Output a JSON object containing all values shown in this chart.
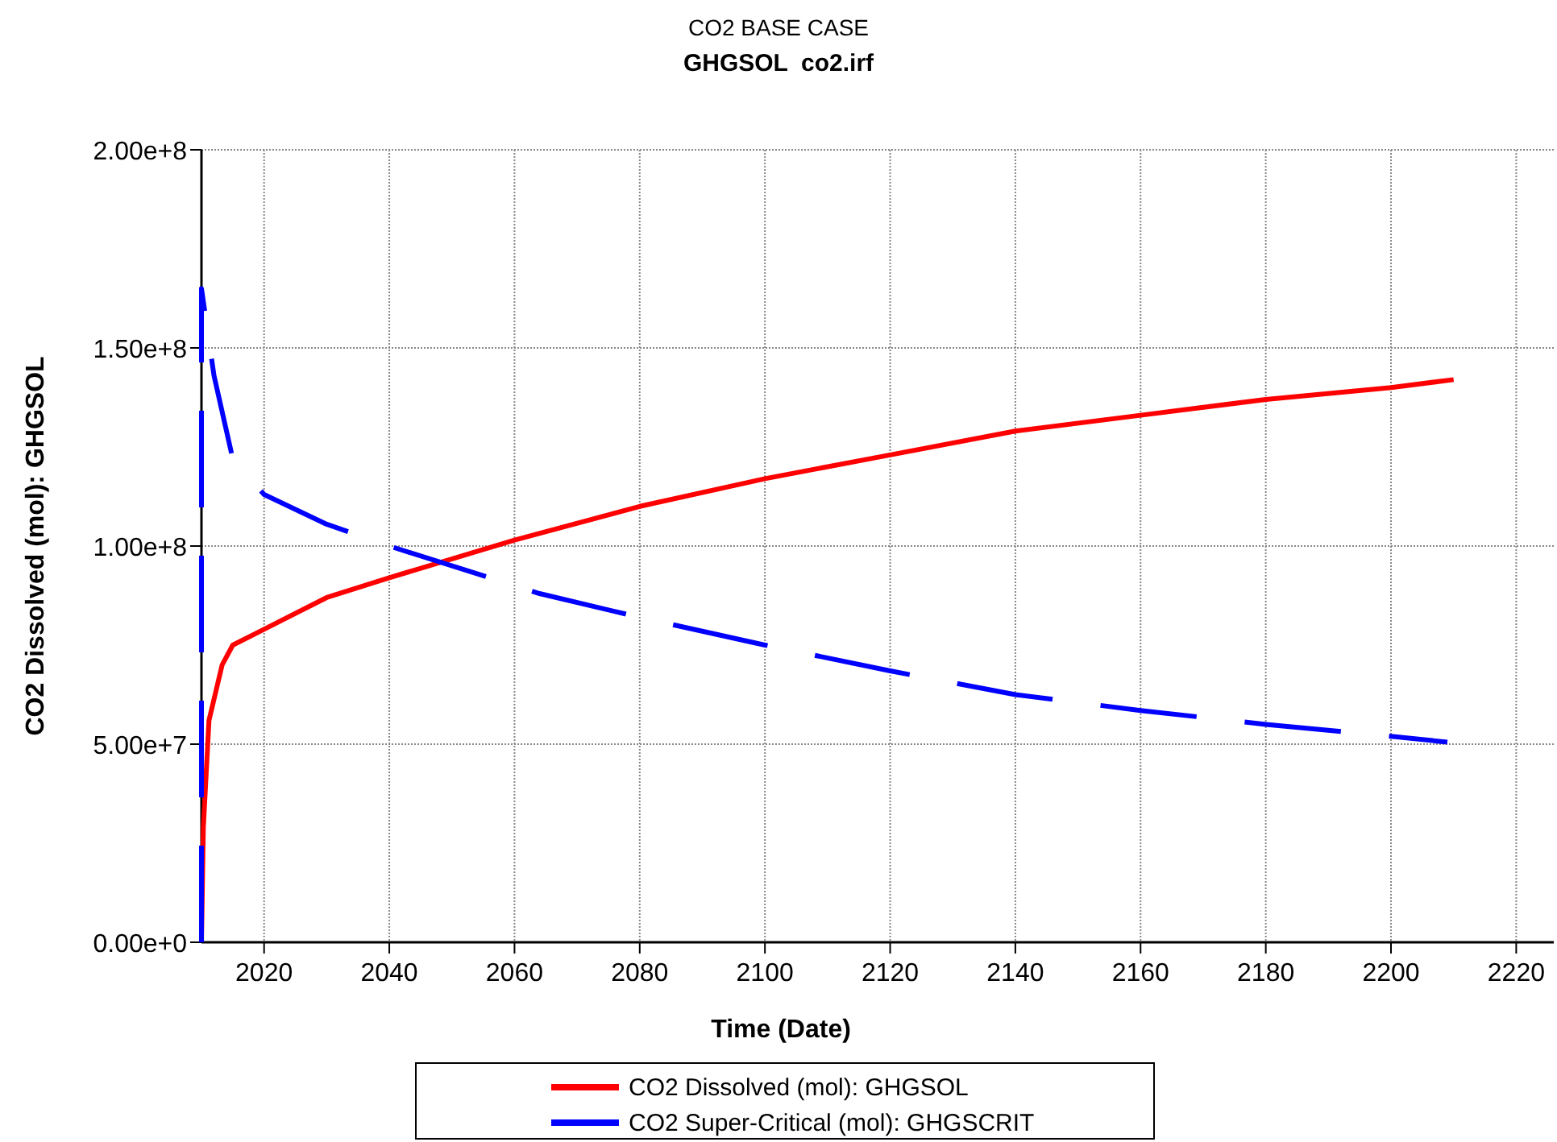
{
  "chart_data": {
    "type": "line",
    "title": "CO2 BASE CASE",
    "subtitle": "GHGSOL  co2.irf",
    "xlabel": "Time (Date)",
    "ylabel": "CO2 Dissolved (mol): GHGSOL",
    "xlim": [
      2010,
      2226
    ],
    "xticks": [
      2020,
      2040,
      2060,
      2080,
      2100,
      2120,
      2140,
      2160,
      2180,
      2200,
      2220
    ],
    "ylim": [
      0,
      200000000
    ],
    "yticks": [
      {
        "value": 0,
        "label": "0.00e+0"
      },
      {
        "value": 50000000,
        "label": "5.00e+7"
      },
      {
        "value": 100000000,
        "label": "1.00e+8"
      },
      {
        "value": 150000000,
        "label": "1.50e+8"
      },
      {
        "value": 200000000,
        "label": "2.00e+8"
      }
    ],
    "grid": true,
    "legend": "bottom",
    "series": [
      {
        "name": "CO2 Dissolved (mol): GHGSOL",
        "color": "#ff0000",
        "line_style": "solid",
        "x": [
          2010,
          2010.3,
          2011.2,
          2013.3,
          2015,
          2020,
          2030,
          2040,
          2060,
          2080,
          2100,
          2120,
          2140,
          2160,
          2180,
          2200,
          2210
        ],
        "values": [
          0,
          29000000,
          56000000,
          70000000,
          75000000,
          79000000,
          87000000,
          92000000,
          101500000,
          110000000,
          117000000,
          123000000,
          129000000,
          133000000,
          137000000,
          140000000,
          142000000
        ]
      },
      {
        "name": "CO2 Super-Critical (mol): GHGSCRIT",
        "color": "#0000ff",
        "line_style": "dashed",
        "x": [
          2010,
          2010,
          2012,
          2015,
          2020,
          2030,
          2040,
          2064,
          2080,
          2100,
          2120,
          2140,
          2160,
          2180,
          2200,
          2209
        ],
        "values": [
          0,
          165000000,
          143000000,
          122000000,
          113000000,
          105500000,
          100000000,
          88000000,
          82000000,
          75000000,
          68500000,
          62500000,
          58500000,
          55000000,
          52000000,
          50500000
        ]
      }
    ]
  }
}
